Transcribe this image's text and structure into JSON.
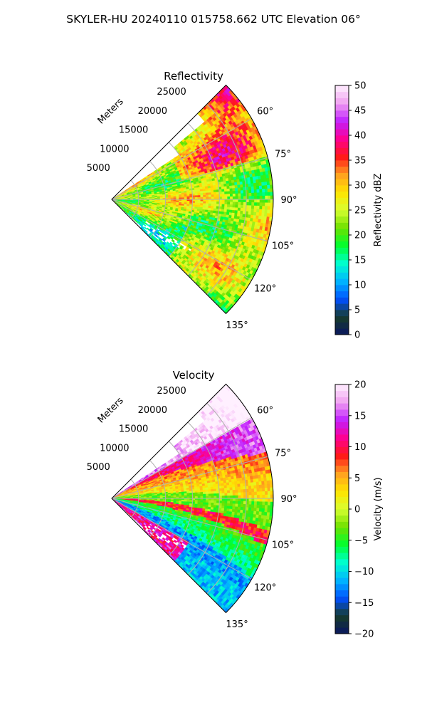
{
  "figure": {
    "suptitle": "SKYLER-HU  20240110  015758.662 UTC Elevation 06°"
  },
  "chart_data": [
    {
      "type": "heatmap",
      "title": "Reflectivity",
      "range_label": "Meters",
      "range_ticks": [
        5000,
        10000,
        15000,
        20000,
        25000
      ],
      "range_tick_labels": [
        "5000",
        "10000",
        "15000",
        "20000",
        "25000"
      ],
      "range_max": 30000,
      "azimuth_range": [
        45,
        135
      ],
      "azimuth_ticks": [
        60,
        75,
        90,
        105,
        120,
        135
      ],
      "azimuth_tick_labels": [
        "60°",
        "75°",
        "90°",
        "105°",
        "120°",
        "135°"
      ],
      "grid": true,
      "colorbar": {
        "label": "Reflectivity dBZ",
        "range": [
          0,
          50
        ],
        "ticks": [
          0,
          5,
          10,
          15,
          20,
          25,
          30,
          35,
          40,
          45,
          50
        ],
        "tick_labels": [
          "0",
          "5",
          "10",
          "15",
          "20",
          "25",
          "30",
          "35",
          "40",
          "45",
          "50"
        ],
        "colors": [
          "#0a1760",
          "#173b2a",
          "#0050ff",
          "#00b4ff",
          "#00ffd0",
          "#00ff30",
          "#6ee000",
          "#d8ff30",
          "#ffe400",
          "#ffa020",
          "#ff1818",
          "#ff0090",
          "#c020ff",
          "#f0a0f0",
          "#fff0ff"
        ]
      },
      "description_values": {
        "typical_dbz": [
          20,
          30
        ],
        "max_dbz": 40
      }
    },
    {
      "type": "heatmap",
      "title": "Velocity",
      "range_label": "Meters",
      "range_ticks": [
        5000,
        10000,
        15000,
        20000,
        25000
      ],
      "range_tick_labels": [
        "5000",
        "10000",
        "15000",
        "20000",
        "25000"
      ],
      "range_max": 30000,
      "azimuth_range": [
        45,
        135
      ],
      "azimuth_ticks": [
        60,
        75,
        90,
        105,
        120,
        135
      ],
      "azimuth_tick_labels": [
        "60°",
        "75°",
        "90°",
        "105°",
        "120°",
        "135°"
      ],
      "grid": true,
      "colorbar": {
        "label": "Velocity (m/s)",
        "range": [
          -20,
          20
        ],
        "ticks": [
          -20,
          -15,
          -10,
          -5,
          0,
          5,
          10,
          15,
          20
        ],
        "tick_labels": [
          "−20",
          "−15",
          "−10",
          "−5",
          "0",
          "5",
          "10",
          "15",
          "20"
        ],
        "colors": [
          "#0a1760",
          "#173b2a",
          "#0050ff",
          "#00b4ff",
          "#00ffd0",
          "#00ff30",
          "#6ee000",
          "#d8ff30",
          "#ffe400",
          "#ffa020",
          "#ff1818",
          "#ff0090",
          "#c020ff",
          "#f0a0f0",
          "#fff0ff"
        ]
      },
      "description_values": {
        "typical_ms": [
          -12,
          12
        ]
      }
    }
  ]
}
